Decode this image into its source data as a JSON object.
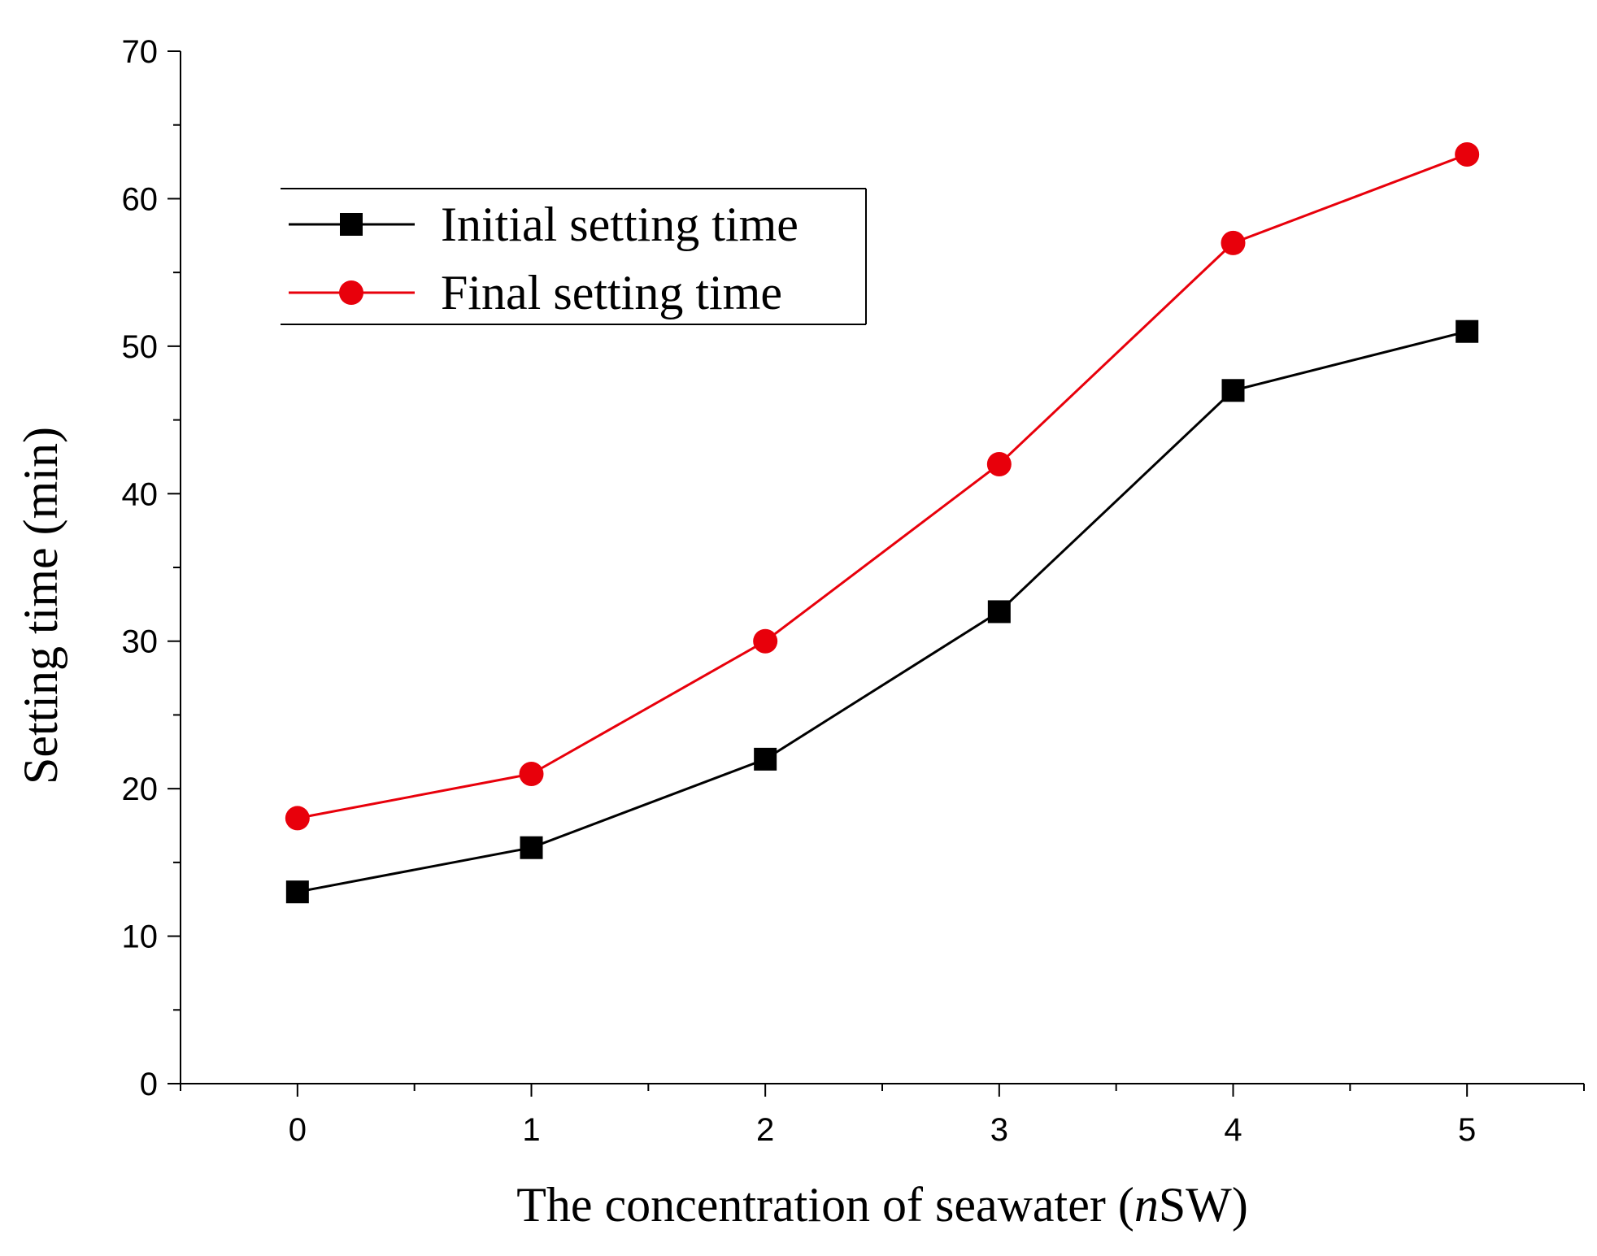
{
  "chart_data": {
    "type": "line",
    "x": [
      0,
      1,
      2,
      3,
      4,
      5
    ],
    "series": [
      {
        "name": "Initial setting time",
        "values": [
          13,
          16,
          22,
          32,
          47,
          51
        ],
        "color": "#000000",
        "marker": "square"
      },
      {
        "name": "Final setting time",
        "values": [
          18,
          21,
          30,
          42,
          57,
          63
        ],
        "color": "#e8000b",
        "marker": "circle"
      }
    ],
    "xlabel_prefix": "The concentration of seawater (",
    "xlabel_italic": "n",
    "xlabel_suffix": "SW)",
    "ylabel": "Setting time (min)",
    "xlim": [
      -0.5,
      5.5
    ],
    "ylim": [
      0,
      70
    ],
    "xticks": [
      0,
      1,
      2,
      3,
      4,
      5
    ],
    "yticks": [
      0,
      10,
      20,
      30,
      40,
      50,
      60,
      70
    ],
    "grid": false,
    "legend_position": "top-left"
  }
}
